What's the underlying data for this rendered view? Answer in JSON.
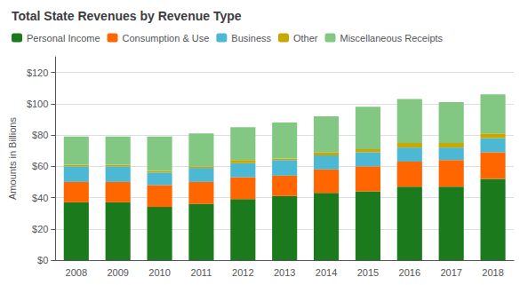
{
  "chart_data": {
    "type": "bar",
    "stacked": true,
    "title": "Total State Revenues by Revenue Type",
    "ylabel": "Amounts in Billions",
    "categories": [
      "2008",
      "2009",
      "2010",
      "2011",
      "2012",
      "2013",
      "2014",
      "2015",
      "2016",
      "2017",
      "2018"
    ],
    "series": [
      {
        "name": "Personal Income",
        "color": "#1b7a1b",
        "values": [
          37,
          37,
          34,
          36,
          39,
          41,
          43,
          44,
          47,
          47,
          52
        ]
      },
      {
        "name": "Consumption & Use",
        "color": "#ff6600",
        "values": [
          13,
          13,
          14,
          14,
          14,
          13,
          15,
          16,
          16,
          17,
          17
        ]
      },
      {
        "name": "Business",
        "color": "#4db8d4",
        "values": [
          10,
          10,
          8,
          9,
          9,
          10,
          9,
          9,
          9,
          8,
          9
        ]
      },
      {
        "name": "Other",
        "color": "#c8a800",
        "values": [
          1,
          1,
          1,
          1,
          2,
          1,
          2,
          2,
          3,
          3,
          3
        ]
      },
      {
        "name": "Miscellaneous Receipts",
        "color": "#82c882",
        "values": [
          18,
          18,
          22,
          21,
          21,
          23,
          23,
          27,
          28,
          26,
          25
        ]
      }
    ],
    "ylim": [
      0,
      130
    ],
    "yticks": [
      {
        "value": 0,
        "label": "$0"
      },
      {
        "value": 20,
        "label": "$20"
      },
      {
        "value": 40,
        "label": "$40"
      },
      {
        "value": 60,
        "label": "$60"
      },
      {
        "value": 80,
        "label": "$80"
      },
      {
        "value": 100,
        "label": "$100"
      },
      {
        "value": 120,
        "label": "$120"
      }
    ],
    "grid": true,
    "legend": "top-left"
  }
}
